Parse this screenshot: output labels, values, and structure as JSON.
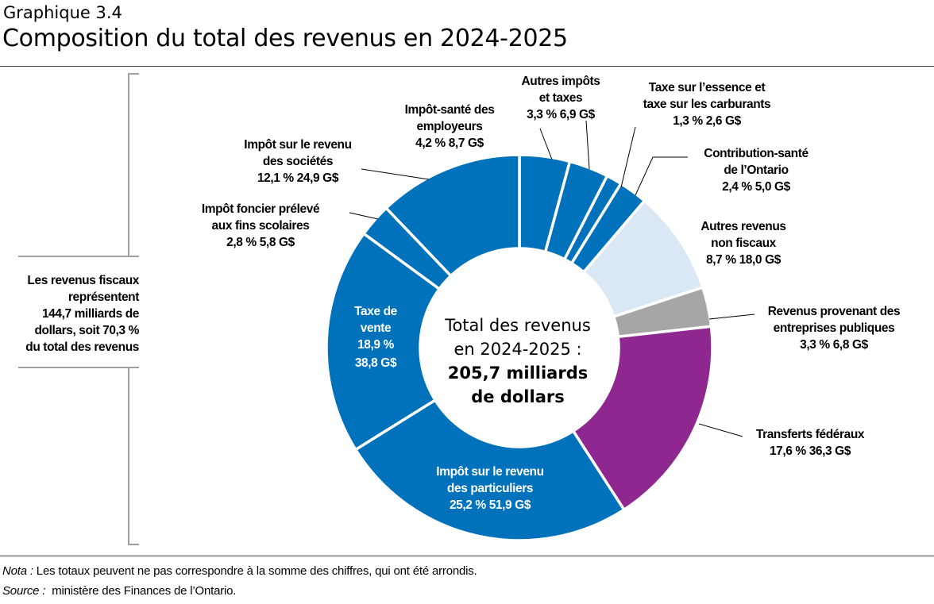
{
  "header": {
    "kicker": "Graphique 3.4",
    "title": "Composition du total des revenus en 2024-2025"
  },
  "chart_data": {
    "type": "donut",
    "title": "Composition du total des revenus en 2024-2025",
    "center_text": [
      "Total des revenus",
      "en 2024-2025 :"
    ],
    "center_bold": [
      "205,7 milliards",
      "de dollars"
    ],
    "start": "top, clockwise",
    "slices": [
      {
        "name": [
          "Impôt-santé des",
          "employeurs"
        ],
        "pct": 4.2,
        "pct_label": "4,2 %",
        "value_label": "8,7 G$",
        "value": 8.7,
        "color": "#0072bb"
      },
      {
        "name": [
          "Autres impôts",
          "et taxes"
        ],
        "pct": 3.3,
        "pct_label": "3,3 %",
        "value_label": "6,9 G$",
        "value": 6.9,
        "color": "#0072bb"
      },
      {
        "name": [
          "Taxe sur l’essence et",
          "taxe sur les carburants"
        ],
        "pct": 1.3,
        "pct_label": "1,3 %",
        "value_label": "2,6 G$",
        "value": 2.6,
        "color": "#0072bb"
      },
      {
        "name": [
          "Contribution-santé",
          "de l’Ontario"
        ],
        "pct": 2.4,
        "pct_label": "2,4 %",
        "value_label": "5,0 G$",
        "value": 5.0,
        "color": "#0072bb"
      },
      {
        "name": [
          "Autres revenus",
          "non fiscaux"
        ],
        "pct": 8.7,
        "pct_label": "8,7 %",
        "value_label": "18,0 G$",
        "value": 18.0,
        "color": "#dae8f5"
      },
      {
        "name": [
          "Revenus provenant des",
          "entreprises publiques"
        ],
        "pct": 3.3,
        "pct_label": "3,3 %",
        "value_label": "6,8 G$",
        "value": 6.8,
        "color": "#a6a6a6"
      },
      {
        "name": [
          "Transferts fédéraux"
        ],
        "pct": 17.6,
        "pct_label": "17,6 %",
        "value_label": "36,3 G$",
        "value": 36.3,
        "color": "#8e278f"
      },
      {
        "name": [
          "Impôt sur le revenu",
          "des particuliers"
        ],
        "pct": 25.2,
        "pct_label": "25,2 %",
        "value_label": "51,9 G$",
        "value": 51.9,
        "color": "#0072bb"
      },
      {
        "name": [
          "Taxe de",
          "vente"
        ],
        "pct": 18.9,
        "pct_label": "18,9 %",
        "value_label": "38,8 G$",
        "value": 38.8,
        "color": "#0072bb"
      },
      {
        "name": [
          "Impôt foncier prélevé",
          "aux fins scolaires"
        ],
        "pct": 2.8,
        "pct_label": "2,8 %",
        "value_label": "5,8 G$",
        "value": 5.8,
        "color": "#0072bb"
      },
      {
        "name": [
          "Impôt sur le revenu",
          "des sociétés"
        ],
        "pct": 12.1,
        "pct_label": "12,1 %",
        "value_label": "24,9 G$",
        "value": 24.9,
        "color": "#0072bb"
      }
    ],
    "bracket_text": [
      "Les revenus fiscaux",
      "représentent",
      "144,7 milliards de",
      "dollars, soit 70,3 %",
      "du total des revenus"
    ]
  },
  "notes": {
    "nota_label": "Nota :",
    "nota": "Les totaux peuvent ne pas correspondre à la somme des chiffres, qui ont été arrondis.",
    "source_label": "Source :",
    "source": "ministère des Finances de l’Ontario."
  }
}
